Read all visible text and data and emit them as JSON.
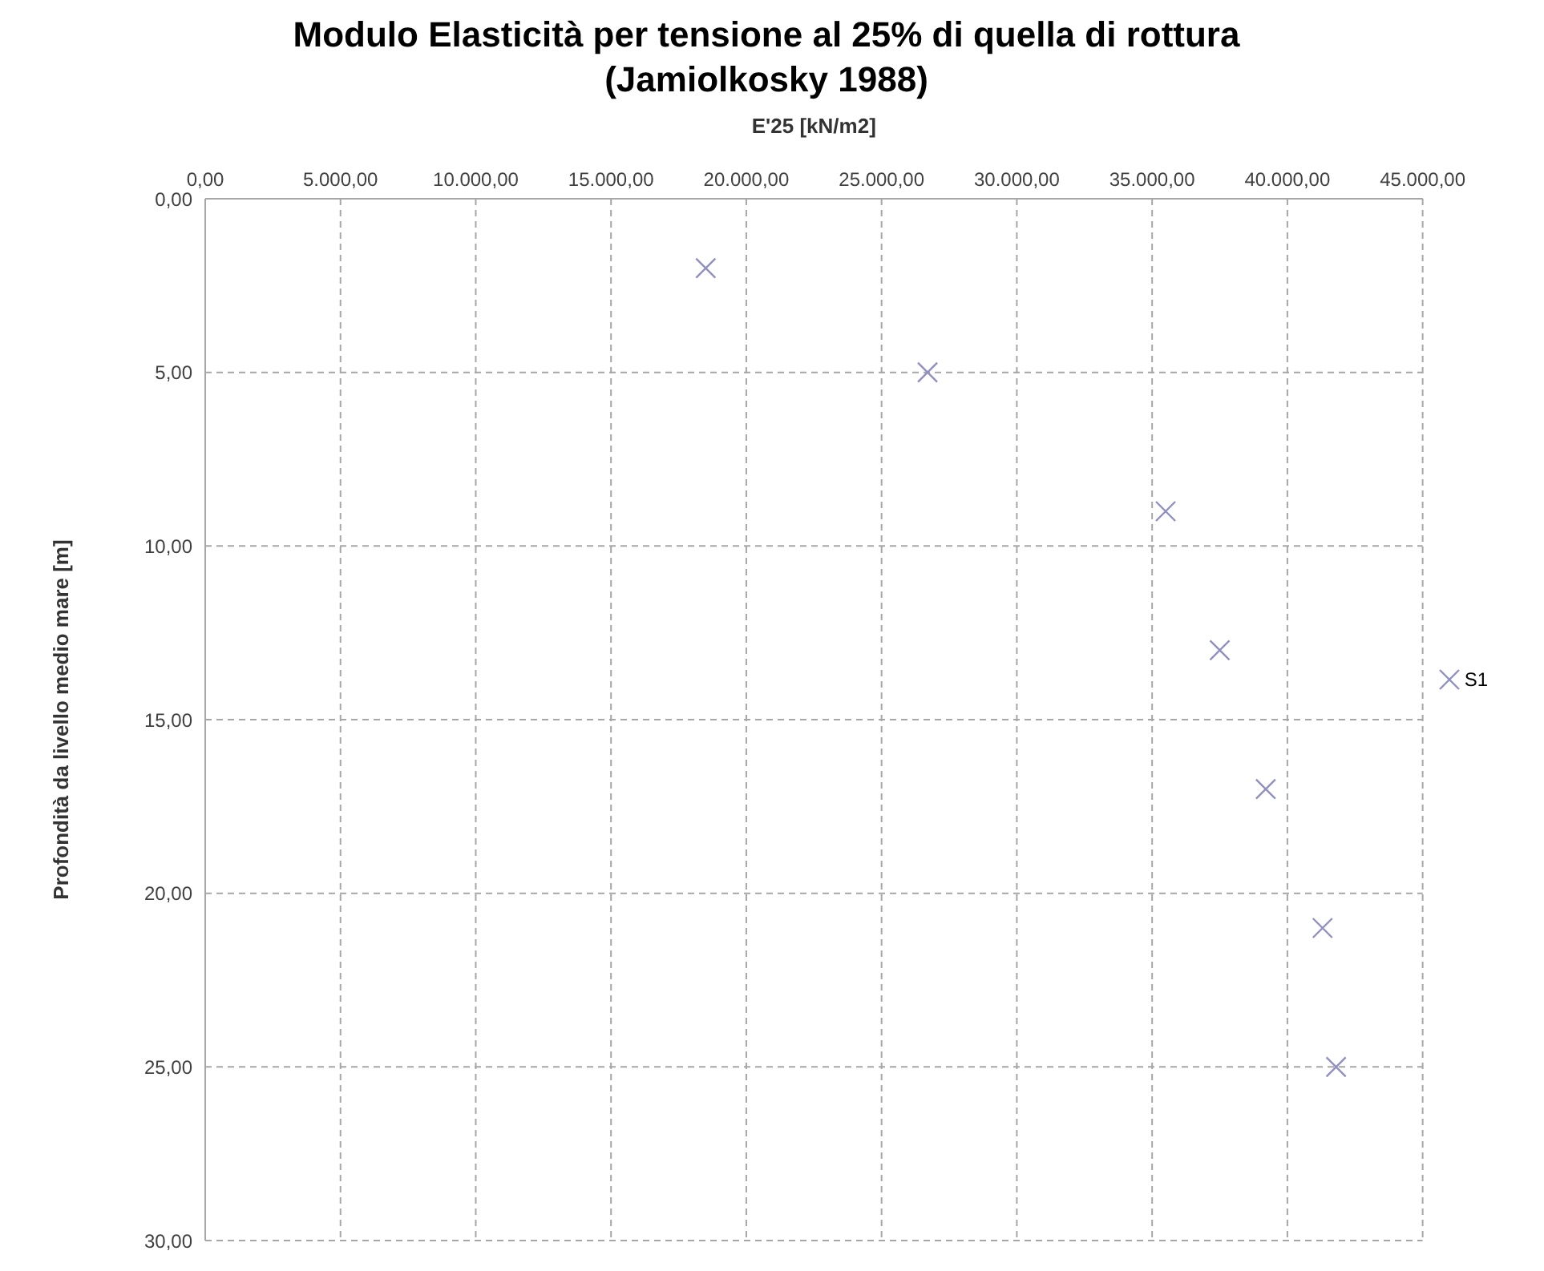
{
  "chart_data": {
    "type": "scatter",
    "title": "Modulo Elasticità per tensione al 25% di quella di rottura\n(Jamiolkosky  1988)",
    "xlabel": "E'25 [kN/m2]",
    "ylabel": "Profondità da livello medio mare [m]",
    "x": [
      18500,
      26700,
      35500,
      37500,
      39200,
      41300,
      41800
    ],
    "series": [
      {
        "name": "S1",
        "color": "#8f8fc0",
        "values": [
          2,
          5,
          9,
          13,
          17,
          21,
          25
        ]
      }
    ],
    "xlim": [
      0,
      45000
    ],
    "xticks": [
      {
        "value": 0,
        "label": "0,00"
      },
      {
        "value": 5000,
        "label": "5.000,00"
      },
      {
        "value": 10000,
        "label": "10.000,00"
      },
      {
        "value": 15000,
        "label": "15.000,00"
      },
      {
        "value": 20000,
        "label": "20.000,00"
      },
      {
        "value": 25000,
        "label": "25.000,00"
      },
      {
        "value": 30000,
        "label": "30.000,00"
      },
      {
        "value": 35000,
        "label": "35.000,00"
      },
      {
        "value": 40000,
        "label": "40.000,00"
      },
      {
        "value": 45000,
        "label": "45.000,00"
      }
    ],
    "ylim": [
      30,
      0
    ],
    "yticks": [
      {
        "value": 0,
        "label": "0,00"
      },
      {
        "value": 5,
        "label": "5,00"
      },
      {
        "value": 10,
        "label": "10,00"
      },
      {
        "value": 15,
        "label": "15,00"
      },
      {
        "value": 20,
        "label": "20,00"
      },
      {
        "value": 25,
        "label": "25,00"
      },
      {
        "value": 30,
        "label": "30,00"
      }
    ],
    "grid": true,
    "legend": "right",
    "marker": "cross"
  }
}
